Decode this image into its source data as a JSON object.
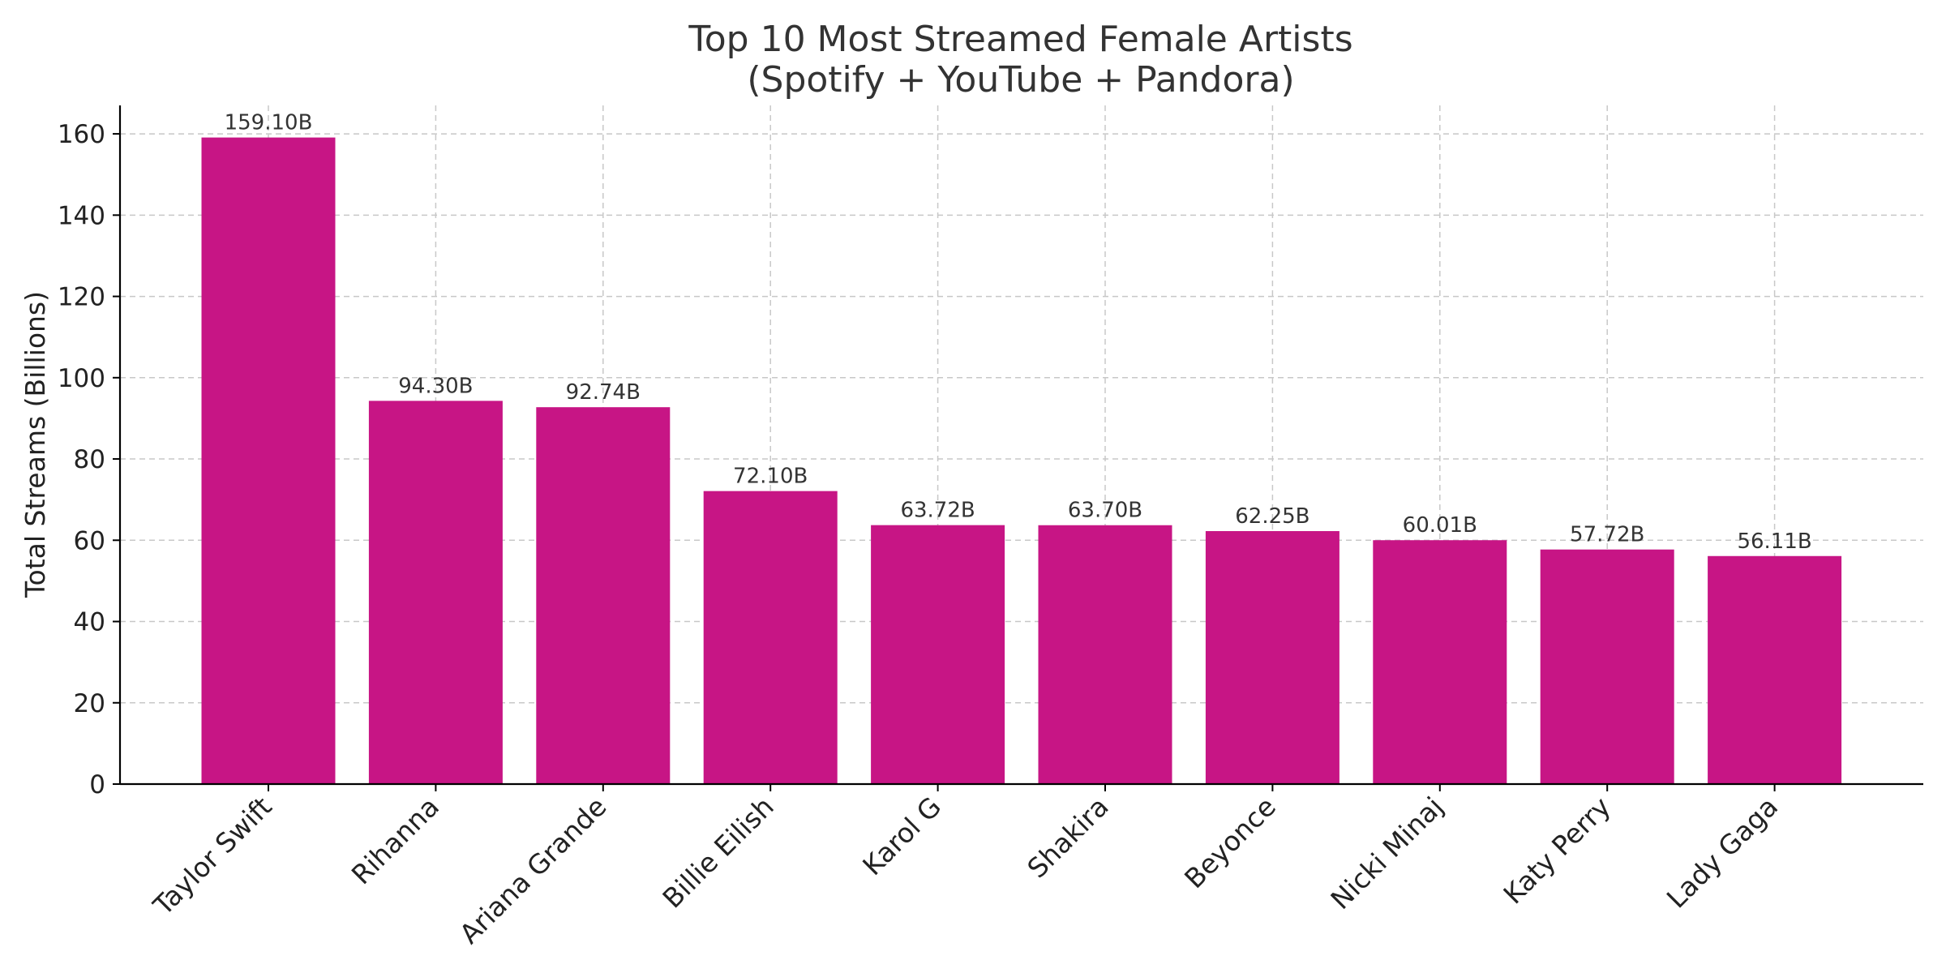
{
  "chart_data": {
    "type": "bar",
    "title_lines": [
      "Top 10 Most Streamed Female Artists",
      "(Spotify + YouTube + Pandora)"
    ],
    "xlabel": "",
    "ylabel": "Total Streams (Billions)",
    "categories": [
      "Taylor Swift",
      "Rihanna",
      "Ariana Grande",
      "Billie Eilish",
      "Karol G",
      "Shakira",
      "Beyonce",
      "Nicki Minaj",
      "Katy Perry",
      "Lady Gaga"
    ],
    "values": [
      159.1,
      94.3,
      92.74,
      72.1,
      63.72,
      63.7,
      62.25,
      60.01,
      57.72,
      56.11
    ],
    "value_labels": [
      "159.10B",
      "94.30B",
      "92.74B",
      "72.10B",
      "63.72B",
      "63.70B",
      "62.25B",
      "60.01B",
      "57.72B",
      "56.11B"
    ],
    "ylim": [
      0,
      167
    ],
    "yticks": [
      0,
      20,
      40,
      60,
      80,
      100,
      120,
      140,
      160
    ],
    "grid": true,
    "bar_color": "#c71585"
  }
}
